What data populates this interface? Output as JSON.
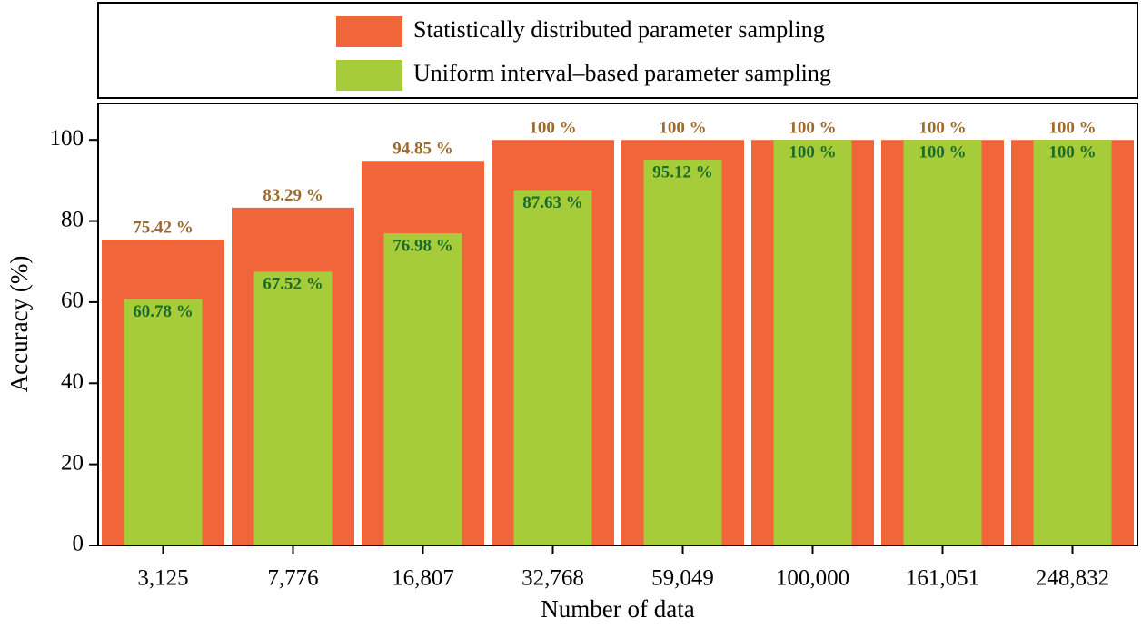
{
  "chart_data": {
    "type": "bar",
    "x_label": "Number of data",
    "y_label": "Accuracy (%)",
    "categories": [
      "3,125",
      "7,776",
      "16,807",
      "32,768",
      "59,049",
      "100,000",
      "161,051",
      "248,832"
    ],
    "series": [
      {
        "name": "Statistically distributed parameter sampling",
        "color": "#f0663a",
        "label_color": "#9c6a2e",
        "values": [
          75.42,
          83.29,
          94.85,
          100,
          100,
          100,
          100,
          100
        ],
        "value_labels": [
          "75.42 %",
          "83.29 %",
          "94.85 %",
          "100 %",
          "100 %",
          "100 %",
          "100 %",
          "100 %"
        ]
      },
      {
        "name": "Uniform interval–based parameter sampling",
        "color": "#a6cc3a",
        "label_color": "#1a6b2a",
        "values": [
          60.78,
          67.52,
          76.98,
          87.63,
          95.12,
          100,
          100,
          100
        ],
        "value_labels": [
          "60.78 %",
          "67.52 %",
          "76.98 %",
          "87.63 %",
          "95.12 %",
          "100 %",
          "100 %",
          "100 %"
        ]
      }
    ],
    "ylim": [
      0,
      109
    ],
    "yticks": [
      0,
      20,
      40,
      60,
      80,
      100
    ],
    "legend": "top"
  }
}
